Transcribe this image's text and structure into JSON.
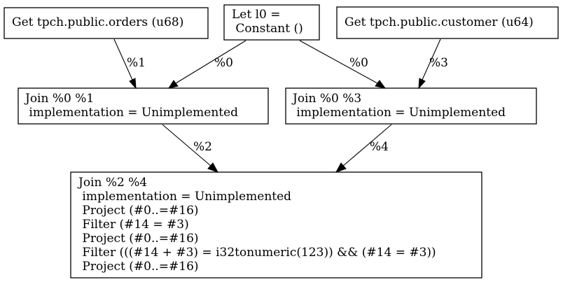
{
  "nodes": {
    "orders": {
      "lines": [
        "Get tpch.public.orders (u68)"
      ]
    },
    "let": {
      "lines": [
        "Let l0 =",
        " Constant ()"
      ]
    },
    "customer": {
      "lines": [
        "Get tpch.public.customer (u64)"
      ]
    },
    "join01": {
      "lines": [
        "Join %0 %1",
        " implementation = Unimplemented"
      ]
    },
    "join03": {
      "lines": [
        "Join %0 %3",
        " implementation = Unimplemented"
      ]
    },
    "join24": {
      "lines": [
        "Join %2 %4",
        " implementation = Unimplemented",
        " Project (#0..=#16)",
        " Filter (#14 = #3)",
        " Project (#0..=#16)",
        " Filter (((#14 + #3) = i32tonumeric(123)) && (#14 = #3))",
        " Project (#0..=#16)"
      ]
    }
  },
  "edges": {
    "orders_to_join01": {
      "label": "%1"
    },
    "let_to_join01": {
      "label": "%0"
    },
    "let_to_join03": {
      "label": "%0"
    },
    "customer_to_join03": {
      "label": "%3"
    },
    "join01_to_join24": {
      "label": "%2"
    },
    "join03_to_join24": {
      "label": "%4"
    }
  }
}
